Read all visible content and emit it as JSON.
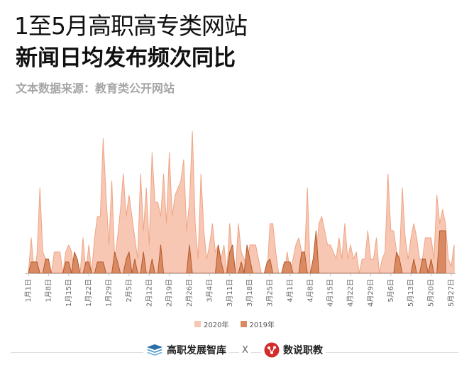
{
  "header": {
    "title_line1": "1至5月高职高专类网站",
    "title_line2": "新闻日均发布频次同比",
    "source": "文本数据来源：教育类公开网站"
  },
  "legend": {
    "series_2020": "2020年",
    "series_2019": "2019年"
  },
  "footer": {
    "brand_left": "高职发展智库",
    "separator": "X",
    "brand_right": "数说职教"
  },
  "colors": {
    "series_2020_fill": "#f8c7b3",
    "series_2020_line": "#eea585",
    "series_2019_fill": "#d98a62",
    "series_2019_line": "#b3592c",
    "axis": "#bfbfbf",
    "tick_label": "#666666"
  },
  "chart_data": {
    "type": "area",
    "title": "",
    "xlabel": "",
    "ylabel": "",
    "ylim": [
      0,
      10
    ],
    "grid": false,
    "legend_position": "bottom",
    "tick_labels": [
      "1月1日",
      "1月8日",
      "1月15日",
      "1月22日",
      "1月29日",
      "2月5日",
      "2月12日",
      "2月19日",
      "2月26日",
      "3月4日",
      "3月11日",
      "3月18日",
      "3月25日",
      "4月1日",
      "4月8日",
      "4月15日",
      "4月22日",
      "4月29日",
      "5月6日",
      "5月13日",
      "5月20日",
      "5月27日"
    ],
    "series": [
      {
        "name": "2020年",
        "values": [
          0,
          2.5,
          0,
          1.3,
          6.0,
          1.5,
          1.0,
          0,
          0,
          1.5,
          1.5,
          1.5,
          0,
          1.5,
          2.0,
          1.5,
          0,
          0,
          0,
          2.5,
          0,
          2.0,
          0,
          2.5,
          4.0,
          4.0,
          9.5,
          5.5,
          2.0,
          6.5,
          1.0,
          2.5,
          4.5,
          7.0,
          4.0,
          5.5,
          4.0,
          2.5,
          1.0,
          7.0,
          3.0,
          6.0,
          2.0,
          8.5,
          5.0,
          5.0,
          4.0,
          7.0,
          3.5,
          8.5,
          4.0,
          5.5,
          6.0,
          6.5,
          8.0,
          3.0,
          5.0,
          10.0,
          3.5,
          1.0,
          7.0,
          3.0,
          1.0,
          2.0,
          3.5,
          1.5,
          2.0,
          1.0,
          2.0,
          0,
          3.5,
          1.0,
          0,
          3.5,
          1.5,
          1.0,
          0.5,
          2.0,
          2.0,
          2.0,
          1.0,
          0,
          0,
          0,
          3.5,
          3.5,
          1.5,
          0,
          0,
          0,
          1.5,
          0,
          1.0,
          2.0,
          2.5,
          1.5,
          1.0,
          6.0,
          0,
          1.0,
          1.0,
          3.5,
          4.0,
          3.0,
          2.0,
          2.0,
          1.5,
          1.0,
          2.5,
          1.0,
          3.5,
          1.0,
          2.0,
          1.0,
          1.5,
          0,
          1.0,
          1.0,
          3.0,
          1.0,
          1.0,
          2.5,
          0,
          1.0,
          1.5,
          7.0,
          3.0,
          3.0,
          1.5,
          1.0,
          6.0,
          2.5,
          1.0,
          2.5,
          3.5,
          2.5,
          1.0,
          1.0,
          2.5,
          2.5,
          2.5,
          1.0,
          5.5,
          3.5,
          4.5,
          3.5,
          1.0,
          0.5,
          2.0
        ]
      },
      {
        "name": "2019年",
        "values": [
          0,
          0.8,
          0.8,
          0.8,
          0,
          0,
          1.0,
          1.0,
          0,
          0,
          0,
          0,
          0,
          0.8,
          0.8,
          0,
          1.5,
          1.0,
          0,
          0,
          0.8,
          0.8,
          0,
          0,
          0.8,
          0.8,
          0.8,
          0,
          0,
          0,
          1.5,
          0.8,
          0,
          0,
          1.0,
          1.5,
          0,
          1.0,
          0,
          0,
          1.5,
          0,
          0,
          1.0,
          0,
          0,
          2.0,
          0,
          0,
          0,
          0,
          0,
          0,
          0,
          0,
          0,
          2.0,
          0,
          0,
          0,
          0,
          0,
          0,
          0,
          0,
          0,
          2.0,
          0.8,
          0,
          0,
          1.5,
          2.0,
          0,
          0,
          0.8,
          0,
          2.0,
          1.0,
          0,
          0,
          0,
          0,
          0,
          0.8,
          1.0,
          0,
          0,
          0,
          0,
          0.8,
          0.8,
          0.8,
          0,
          0,
          0,
          1.5,
          1.5,
          0,
          0,
          1.0,
          3.0,
          0,
          0,
          0,
          0,
          0,
          0,
          0,
          0,
          0,
          0,
          0,
          0,
          0,
          0,
          0,
          0,
          0,
          0,
          0,
          0,
          0,
          0,
          0,
          0,
          0,
          0,
          0,
          1.5,
          1.0,
          0,
          0,
          0,
          0,
          1.0,
          0,
          0,
          1.0,
          1.0,
          0,
          1.0,
          0,
          0,
          3.0,
          3.0,
          3.0
        ]
      }
    ]
  }
}
